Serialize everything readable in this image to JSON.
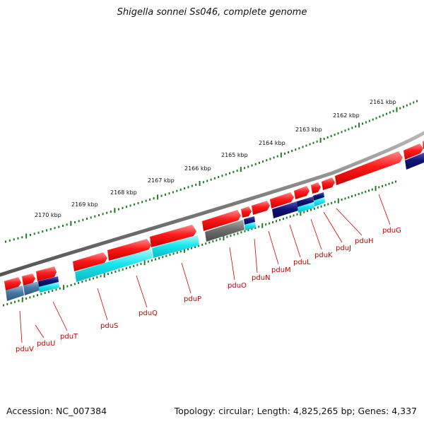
{
  "title": "Shigella sonnei Ss046, complete genome",
  "footer": {
    "accession": "Accession: NC_007384",
    "summary": "Topology: circular; Length: 4,825,265 bp; Genes: 4,337"
  },
  "colors": {
    "backbone": "#7a7a7a",
    "gene_red": "#ff1a1a",
    "gene_cyan": "#19e6ef",
    "gene_navy": "#0f1478",
    "gene_steel": "#4a78a6",
    "gene_gray": "#6e6e6e",
    "tick_green": "#1f7a1f",
    "label_red": "#cc0000"
  },
  "scale_ticks": [
    "2170 kbp",
    "2169 kbp",
    "2168 kbp",
    "2167 kbp",
    "2166 kbp",
    "2165 kbp",
    "2164 kbp",
    "2163 kbp",
    "2162 kbp",
    "2161 kbp"
  ],
  "genes": [
    {
      "name": "pduV"
    },
    {
      "name": "pduU"
    },
    {
      "name": "pduT"
    },
    {
      "name": "pduS"
    },
    {
      "name": "pduQ"
    },
    {
      "name": "pduP"
    },
    {
      "name": "pduO"
    },
    {
      "name": "pduN"
    },
    {
      "name": "pduM"
    },
    {
      "name": "pduL"
    },
    {
      "name": "pduK"
    },
    {
      "name": "pduJ"
    },
    {
      "name": "pduH"
    },
    {
      "name": "pduG"
    }
  ]
}
